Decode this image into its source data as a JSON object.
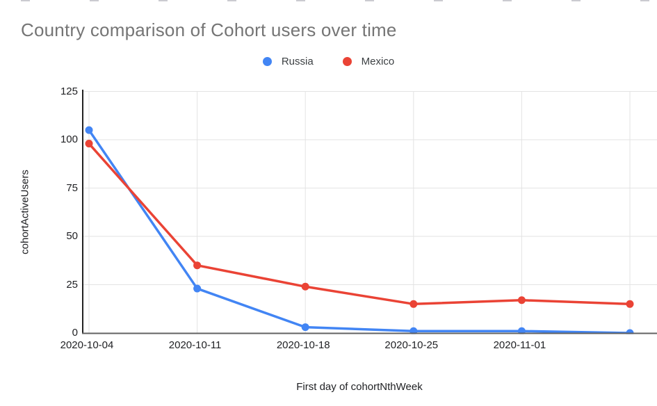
{
  "chart_data": {
    "type": "line",
    "title": "Country comparison of Cohort users over time",
    "xlabel": "First day of cohortNthWeek",
    "ylabel": "cohortActiveUsers",
    "x_tick_labels": [
      "2020-10-04",
      "2020-10-11",
      "2020-10-18",
      "2020-10-25",
      "2020-11-01"
    ],
    "num_points": 6,
    "note": "sixth weekly point is plotted at the right edge without a visible tick label",
    "series": [
      {
        "name": "Russia",
        "color": "#4285F4",
        "values": [
          105,
          23,
          3,
          1,
          1,
          0
        ]
      },
      {
        "name": "Mexico",
        "color": "#EA4335",
        "values": [
          98,
          35,
          24,
          15,
          17,
          15
        ]
      }
    ],
    "y_ticks": [
      0,
      25,
      50,
      75,
      100,
      125
    ],
    "ylim": [
      0,
      125
    ],
    "grid": true,
    "legend_position": "top-center",
    "colors": {
      "title_text": "#757575",
      "axis_text": "#202124",
      "legend_text": "#3c4043",
      "gridline": "#e3e3e3",
      "left_axis": "#212121",
      "bottom_axis": "#616161"
    }
  }
}
